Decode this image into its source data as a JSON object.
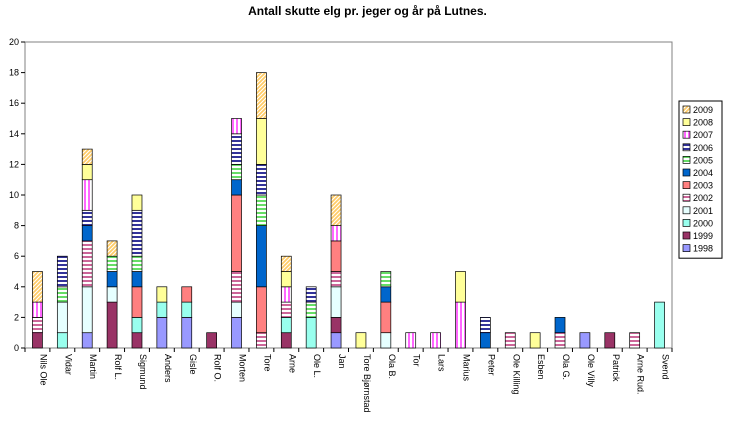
{
  "chart_data": {
    "type": "bar",
    "stacked": true,
    "title": "Antall skutte elg pr. jeger og år på Lutnes.",
    "xlabel": "",
    "ylabel": "",
    "ylim": [
      0,
      20
    ],
    "yticks": [
      0,
      2,
      4,
      6,
      8,
      10,
      12,
      14,
      16,
      18,
      20
    ],
    "grid": false,
    "legend_position": "right",
    "categories": [
      "Nils Ole",
      "Vidar",
      "Martin",
      "Rolf L.",
      "Sigmund",
      "Anders",
      "Gisle",
      "Rolf O.",
      "Morten",
      "Tore",
      "Arne",
      "Ole L.",
      "Jan",
      "Tore Bjørnstad",
      "Ola B.",
      "Tor",
      "Lars",
      "Marius",
      "Peter",
      "Ole Killing",
      "Esben",
      "Ola G.",
      "Ole Villy",
      "Patrick",
      "Arne Rud.",
      "Svend"
    ],
    "series": [
      {
        "name": "1998",
        "color": "#9999FF",
        "pattern": "solid",
        "values": [
          0,
          0,
          1,
          0,
          0,
          2,
          2,
          0,
          2,
          0,
          0,
          0,
          1,
          0,
          0,
          0,
          0,
          0,
          0,
          0,
          0,
          0,
          1,
          0,
          0,
          0
        ]
      },
      {
        "name": "1999",
        "color": "#993366",
        "pattern": "solid",
        "values": [
          1,
          0,
          0,
          3,
          1,
          0,
          0,
          1,
          0,
          0,
          1,
          0,
          1,
          0,
          0,
          0,
          0,
          0,
          0,
          0,
          0,
          0,
          0,
          1,
          0,
          0
        ]
      },
      {
        "name": "2000",
        "color": "#99FFEE",
        "pattern": "solid",
        "values": [
          0,
          1,
          0,
          0,
          1,
          1,
          1,
          0,
          0,
          0,
          1,
          2,
          0,
          0,
          0,
          0,
          0,
          0,
          0,
          0,
          0,
          0,
          0,
          0,
          0,
          3
        ]
      },
      {
        "name": "2001",
        "color": "#E6FFFF",
        "pattern": "solid",
        "values": [
          0,
          2,
          3,
          1,
          0,
          0,
          0,
          0,
          1,
          0,
          0,
          0,
          2,
          0,
          1,
          0,
          0,
          0,
          0,
          0,
          0,
          0,
          0,
          0,
          0,
          0
        ]
      },
      {
        "name": "2002",
        "color": "#CC6699",
        "pattern": "hstripe",
        "values": [
          1,
          0,
          3,
          0,
          0,
          0,
          0,
          0,
          2,
          1,
          1,
          0,
          1,
          0,
          0,
          0,
          0,
          0,
          0,
          1,
          0,
          1,
          0,
          0,
          1,
          0
        ]
      },
      {
        "name": "2003",
        "color": "#FF8080",
        "pattern": "solid",
        "values": [
          0,
          0,
          0,
          0,
          2,
          0,
          1,
          0,
          5,
          3,
          0,
          0,
          2,
          0,
          2,
          0,
          0,
          0,
          0,
          0,
          0,
          0,
          0,
          0,
          0,
          0
        ]
      },
      {
        "name": "2004",
        "color": "#0066CC",
        "pattern": "solid",
        "values": [
          0,
          0,
          1,
          1,
          1,
          0,
          0,
          0,
          1,
          4,
          0,
          0,
          0,
          0,
          1,
          0,
          0,
          0,
          1,
          0,
          0,
          1,
          0,
          0,
          0,
          0
        ]
      },
      {
        "name": "2005",
        "color": "#66DD66",
        "pattern": "hstripe",
        "values": [
          0,
          1,
          0,
          1,
          1,
          0,
          0,
          0,
          1,
          2,
          0,
          1,
          0,
          0,
          1,
          0,
          0,
          0,
          0,
          0,
          0,
          0,
          0,
          0,
          0,
          0
        ]
      },
      {
        "name": "2006",
        "color": "#333399",
        "pattern": "hstripe",
        "values": [
          0,
          2,
          1,
          0,
          3,
          0,
          0,
          0,
          2,
          2,
          0,
          1,
          0,
          0,
          0,
          0,
          0,
          0,
          1,
          0,
          0,
          0,
          0,
          0,
          0,
          0
        ]
      },
      {
        "name": "2007",
        "color": "#FF66FF",
        "pattern": "vstripe",
        "values": [
          1,
          0,
          2,
          0,
          0,
          0,
          0,
          0,
          1,
          0,
          1,
          0,
          1,
          0,
          0,
          1,
          1,
          3,
          0,
          0,
          0,
          0,
          0,
          0,
          0,
          0
        ]
      },
      {
        "name": "2008",
        "color": "#FFFF99",
        "pattern": "solid",
        "values": [
          0,
          0,
          1,
          0,
          1,
          1,
          0,
          0,
          0,
          3,
          1,
          0,
          0,
          1,
          0,
          0,
          0,
          2,
          0,
          0,
          1,
          0,
          0,
          0,
          0,
          0
        ]
      },
      {
        "name": "2009",
        "color": "#FFCC66",
        "pattern": "dstripe",
        "values": [
          2,
          0,
          1,
          1,
          0,
          0,
          0,
          0,
          0,
          3,
          1,
          0,
          2,
          0,
          0,
          0,
          0,
          0,
          0,
          0,
          0,
          0,
          0,
          0,
          0,
          0
        ]
      }
    ]
  }
}
